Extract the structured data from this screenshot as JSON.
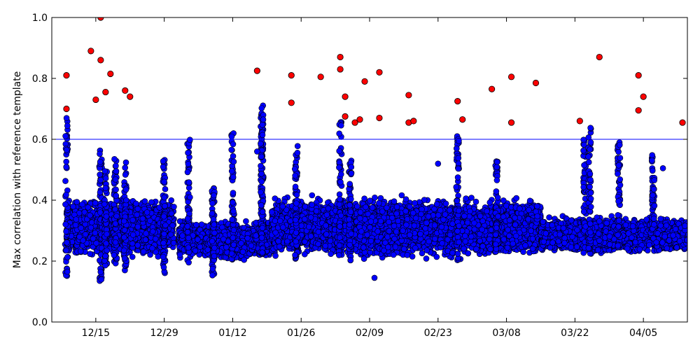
{
  "chart_data": {
    "type": "scatter",
    "title": "",
    "xlabel": "",
    "ylabel": "Max correlation with reference template",
    "x_tick_labels": [
      "12/15",
      "12/29",
      "01/12",
      "01/26",
      "02/09",
      "02/23",
      "03/08",
      "03/22",
      "04/05"
    ],
    "x_tick_dates": [
      "12-15",
      "12-29",
      "01-12",
      "01-26",
      "02-09",
      "02-23",
      "03-08",
      "03-22",
      "04-05"
    ],
    "xlim": [
      "12-06",
      "04-14"
    ],
    "ylim": [
      0.0,
      1.0
    ],
    "y_ticks": [
      "0.0",
      "0.2",
      "0.4",
      "0.6",
      "0.8",
      "1.0"
    ],
    "grid": false,
    "threshold": {
      "value": 0.6,
      "color": "#0000ff"
    },
    "colors": {
      "below_threshold": "#0000ff",
      "above_threshold": "#ff0000",
      "marker_edge": "#000000"
    },
    "series": [
      {
        "color": "#ff0000",
        "points": [
          {
            "date": "12-09",
            "y": 0.81
          },
          {
            "date": "12-09",
            "y": 0.7
          },
          {
            "date": "12-14",
            "y": 0.89
          },
          {
            "date": "12-15",
            "y": 0.73
          },
          {
            "date": "12-16",
            "y": 0.86
          },
          {
            "date": "12-16",
            "y": 1.0
          },
          {
            "date": "12-17",
            "y": 0.755
          },
          {
            "date": "12-18",
            "y": 0.815
          },
          {
            "date": "12-21",
            "y": 0.76
          },
          {
            "date": "12-22",
            "y": 0.74
          },
          {
            "date": "01-17",
            "y": 0.825
          },
          {
            "date": "01-24",
            "y": 0.81
          },
          {
            "date": "01-24",
            "y": 0.72
          },
          {
            "date": "01-30",
            "y": 0.805
          },
          {
            "date": "02-03",
            "y": 0.83
          },
          {
            "date": "02-03",
            "y": 0.87
          },
          {
            "date": "02-04",
            "y": 0.74
          },
          {
            "date": "02-04",
            "y": 0.675
          },
          {
            "date": "02-06",
            "y": 0.655
          },
          {
            "date": "02-07",
            "y": 0.665
          },
          {
            "date": "02-08",
            "y": 0.79
          },
          {
            "date": "02-11",
            "y": 0.67
          },
          {
            "date": "02-11",
            "y": 0.82
          },
          {
            "date": "02-17",
            "y": 0.745
          },
          {
            "date": "02-17",
            "y": 0.655
          },
          {
            "date": "02-18",
            "y": 0.66
          },
          {
            "date": "02-27",
            "y": 0.725
          },
          {
            "date": "02-28",
            "y": 0.665
          },
          {
            "date": "03-05",
            "y": 0.765
          },
          {
            "date": "03-09",
            "y": 0.655
          },
          {
            "date": "03-09",
            "y": 0.805
          },
          {
            "date": "03-14",
            "y": 0.785
          },
          {
            "date": "03-23",
            "y": 0.66
          },
          {
            "date": "03-27",
            "y": 0.87
          },
          {
            "date": "04-04",
            "y": 0.81
          },
          {
            "date": "04-04",
            "y": 0.695
          },
          {
            "date": "04-05",
            "y": 0.74
          },
          {
            "date": "04-13",
            "y": 0.655
          }
        ]
      },
      {
        "color": "#0000ff",
        "clusters": [
          {
            "from": "12-09",
            "to": "12-31",
            "low": 0.2,
            "high": 0.42
          },
          {
            "from": "01-01",
            "to": "01-20",
            "low": 0.2,
            "high": 0.34
          },
          {
            "from": "01-20",
            "to": "03-15",
            "low": 0.2,
            "high": 0.42
          },
          {
            "from": "03-15",
            "to": "04-14",
            "low": 0.22,
            "high": 0.35
          }
        ],
        "spikes": [
          {
            "date": "12-09",
            "low": 0.15,
            "high": 0.67
          },
          {
            "date": "12-16",
            "low": 0.13,
            "high": 0.58
          },
          {
            "date": "12-17",
            "low": 0.18,
            "high": 0.5
          },
          {
            "date": "12-19",
            "low": 0.18,
            "high": 0.54
          },
          {
            "date": "12-21",
            "low": 0.16,
            "high": 0.54
          },
          {
            "date": "12-29",
            "low": 0.14,
            "high": 0.54
          },
          {
            "date": "01-03",
            "low": 0.18,
            "high": 0.6
          },
          {
            "date": "01-08",
            "low": 0.15,
            "high": 0.45
          },
          {
            "date": "01-12",
            "low": 0.2,
            "high": 0.62
          },
          {
            "date": "01-18",
            "low": 0.22,
            "high": 0.73
          },
          {
            "date": "01-18",
            "low": 0.22,
            "high": 0.69
          },
          {
            "date": "01-25",
            "low": 0.2,
            "high": 0.58
          },
          {
            "date": "02-03",
            "low": 0.2,
            "high": 0.67
          },
          {
            "date": "02-05",
            "low": 0.2,
            "high": 0.53
          },
          {
            "date": "02-27",
            "low": 0.2,
            "high": 0.61
          },
          {
            "date": "03-06",
            "low": 0.22,
            "high": 0.53
          },
          {
            "date": "03-24",
            "low": 0.22,
            "high": 0.6
          },
          {
            "date": "03-25",
            "low": 0.22,
            "high": 0.64
          },
          {
            "date": "03-31",
            "low": 0.24,
            "high": 0.59
          },
          {
            "date": "04-07",
            "low": 0.3,
            "high": 0.55
          }
        ],
        "points": [
          {
            "date": "02-10",
            "y": 0.145
          },
          {
            "date": "04-09",
            "y": 0.505
          },
          {
            "date": "02-23",
            "y": 0.52
          },
          {
            "date": "01-17",
            "y": 0.56
          }
        ]
      }
    ]
  }
}
